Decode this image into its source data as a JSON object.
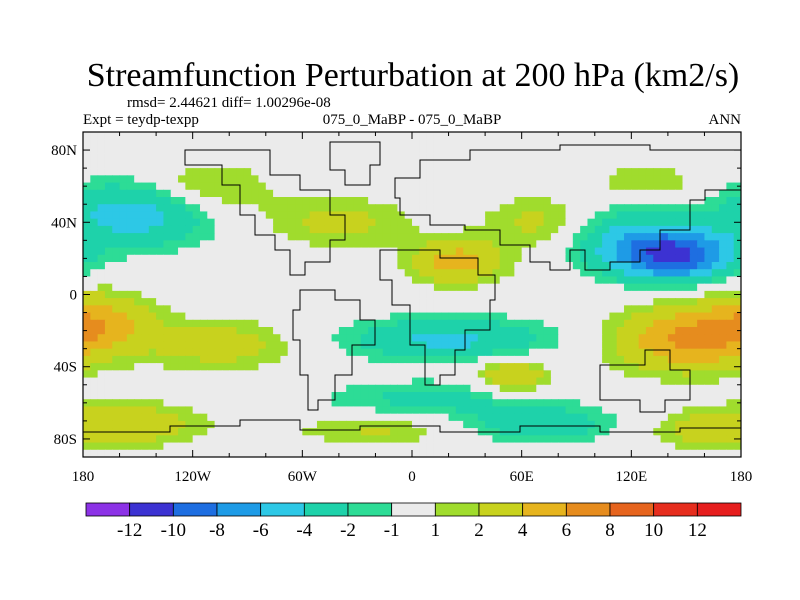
{
  "chart_data": {
    "type": "heatmap",
    "title": "Streamfunction Perturbation at 200 hPa (km2/s)",
    "stats": "rmsd= 2.44621 diff= 1.00296e-08",
    "experiment": "Expt = teydp-texpp",
    "case": "075_0_MaBP - 075_0_MaBP",
    "season": "ANN",
    "x_ticks": [
      "180",
      "120W",
      "60W",
      "0",
      "60E",
      "120E",
      "180"
    ],
    "x_values": [
      -180,
      -120,
      -60,
      0,
      60,
      120,
      180
    ],
    "y_ticks": [
      "80N",
      "40N",
      "0",
      "40S",
      "80S"
    ],
    "y_values": [
      80,
      40,
      0,
      -40,
      -80
    ],
    "xlim": [
      -180,
      180
    ],
    "ylim": [
      -90,
      90
    ],
    "colorbar": {
      "labels": [
        "-12",
        "-10",
        "-8",
        "-6",
        "-4",
        "-2",
        "-1",
        "1",
        "2",
        "4",
        "6",
        "8",
        "10",
        "12"
      ],
      "levels": [
        -12,
        -10,
        -8,
        -6,
        -4,
        -2,
        -1,
        1,
        2,
        4,
        6,
        8,
        10,
        12
      ],
      "colors": [
        "#8c32e6",
        "#3c32d2",
        "#1e6ee1",
        "#1e9be6",
        "#2dc8e6",
        "#1ed2aa",
        "#2ddc96",
        "#ebebeb",
        "#a0dc2d",
        "#c8d21e",
        "#e6b41e",
        "#e68c1e",
        "#e6641e",
        "#e62d1e",
        "#e61e1e"
      ]
    },
    "anomalies": [
      {
        "lon": -150,
        "lat": 45,
        "amp": -5.5,
        "rx": 42,
        "ry": 18
      },
      {
        "lon": -115,
        "lat": 58,
        "amp": 3.0,
        "rx": 35,
        "ry": 15
      },
      {
        "lon": -172,
        "lat": -15,
        "amp": 4.5,
        "rx": 30,
        "ry": 16
      },
      {
        "lon": -105,
        "lat": -28,
        "amp": 3.0,
        "rx": 40,
        "ry": 14
      },
      {
        "lon": -155,
        "lat": -72,
        "amp": 3.5,
        "rx": 40,
        "ry": 12
      },
      {
        "lon": -40,
        "lat": 40,
        "amp": 2.5,
        "rx": 40,
        "ry": 14
      },
      {
        "lon": 25,
        "lat": 18,
        "amp": 5.0,
        "rx": 25,
        "ry": 12
      },
      {
        "lon": 70,
        "lat": 40,
        "amp": 2.5,
        "rx": 30,
        "ry": 14
      },
      {
        "lon": 20,
        "lat": -25,
        "amp": -4.5,
        "rx": 55,
        "ry": 12
      },
      {
        "lon": 55,
        "lat": -45,
        "amp": 4.0,
        "rx": 20,
        "ry": 10
      },
      {
        "lon": 10,
        "lat": -58,
        "amp": -2.5,
        "rx": 60,
        "ry": 10
      },
      {
        "lon": 70,
        "lat": -72,
        "amp": -3.5,
        "rx": 40,
        "ry": 10
      },
      {
        "lon": 145,
        "lat": 22,
        "amp": -10.0,
        "rx": 30,
        "ry": 14
      },
      {
        "lon": 115,
        "lat": 30,
        "amp": -4.0,
        "rx": 30,
        "ry": 18
      },
      {
        "lon": 130,
        "lat": 62,
        "amp": 2.0,
        "rx": 30,
        "ry": 10
      },
      {
        "lon": 150,
        "lat": -25,
        "amp": 6.0,
        "rx": 40,
        "ry": 18
      },
      {
        "lon": 160,
        "lat": -75,
        "amp": 2.5,
        "rx": 30,
        "ry": 10
      },
      {
        "lon": -20,
        "lat": -75,
        "amp": 2.2,
        "rx": 45,
        "ry": 8
      }
    ]
  }
}
